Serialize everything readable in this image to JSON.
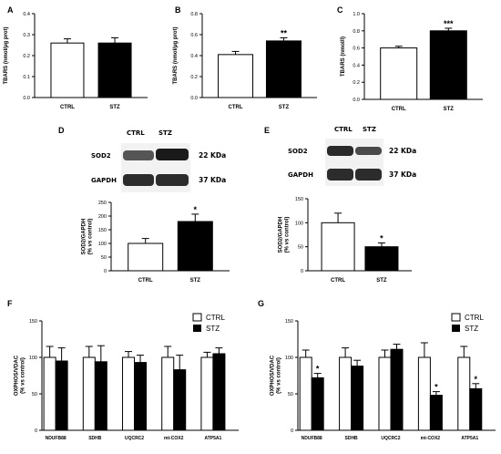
{
  "panels": {
    "A": "A",
    "B": "B",
    "C": "C",
    "D": "D",
    "E": "E",
    "F": "F",
    "G": "G"
  },
  "blots": {
    "D": {
      "header": [
        "CTRL",
        "STZ"
      ],
      "rows": [
        {
          "protein": "SOD2",
          "size": "22 KDa"
        },
        {
          "protein": "GAPDH",
          "size": "37 KDa"
        }
      ]
    },
    "E": {
      "header": [
        "CTRL",
        "STZ"
      ],
      "rows": [
        {
          "protein": "SOD2",
          "size": "22 KDa"
        },
        {
          "protein": "GAPDH",
          "size": "37 KDa"
        }
      ]
    }
  },
  "legend": {
    "ctrl": "CTRL",
    "stz": "STZ"
  },
  "colors": {
    "ctrl": "#ffffff",
    "stz": "#000000",
    "axis": "#000000"
  },
  "chart_data": [
    {
      "id": "A",
      "type": "bar",
      "categories": [
        "CTRL",
        "STZ"
      ],
      "values": [
        0.26,
        0.26
      ],
      "errors": [
        0.02,
        0.025
      ],
      "stars": [
        "",
        ""
      ],
      "ylabel": "TBARS (nmol/μg prot)",
      "ylim": [
        0,
        0.4
      ],
      "yticks": [
        "0.0",
        "0.1",
        "0.2",
        "0.3",
        "0.4"
      ]
    },
    {
      "id": "B",
      "type": "bar",
      "categories": [
        "CTRL",
        "STZ"
      ],
      "values": [
        0.41,
        0.54
      ],
      "errors": [
        0.03,
        0.03
      ],
      "stars": [
        "",
        "**"
      ],
      "ylabel": "TBARS (nmol/μg prot)",
      "ylim": [
        0,
        0.8
      ],
      "yticks": [
        "0.0",
        "0.2",
        "0.4",
        "0.6",
        "0.8"
      ]
    },
    {
      "id": "C",
      "type": "bar",
      "categories": [
        "CTRL",
        "STZ"
      ],
      "values": [
        0.6,
        0.8
      ],
      "errors": [
        0.02,
        0.03
      ],
      "stars": [
        "",
        "***"
      ],
      "ylabel": "TBARS (nmol/l)",
      "ylim": [
        0,
        1.0
      ],
      "yticks": [
        "0.0",
        "0.2",
        "0.4",
        "0.6",
        "0.8",
        "1.0"
      ]
    },
    {
      "id": "D",
      "type": "bar",
      "categories": [
        "CTRL",
        "STZ"
      ],
      "values": [
        100,
        180
      ],
      "errors": [
        18,
        27
      ],
      "stars": [
        "",
        "*"
      ],
      "ylabel": "SOD2/GAPDH (% vs control)",
      "ylim": [
        0,
        250
      ],
      "yticks": [
        "0",
        "50",
        "100",
        "150",
        "200",
        "250"
      ]
    },
    {
      "id": "E",
      "type": "bar",
      "categories": [
        "CTRL",
        "STZ"
      ],
      "values": [
        100,
        50
      ],
      "errors": [
        20,
        8
      ],
      "stars": [
        "",
        "*"
      ],
      "ylabel": "SOD2/GAPDH (% vs control)",
      "ylim": [
        0,
        150
      ],
      "yticks": [
        "0",
        "50",
        "100",
        "150"
      ]
    },
    {
      "id": "F",
      "type": "bar",
      "categories": [
        "NDUFB88",
        "SDHB",
        "UQCRC2",
        "mt-COX2",
        "ATP5A1"
      ],
      "series": [
        {
          "name": "CTRL",
          "values": [
            100,
            100,
            100,
            100,
            100
          ],
          "errors": [
            15,
            15,
            8,
            15,
            7
          ],
          "stars": [
            "",
            "",
            "",
            "",
            ""
          ]
        },
        {
          "name": "STZ",
          "values": [
            95,
            94,
            93,
            83,
            105
          ],
          "errors": [
            18,
            22,
            10,
            20,
            8
          ],
          "stars": [
            "",
            "",
            "",
            "",
            ""
          ]
        }
      ],
      "ylabel": "OXPHOS/VDAC (% vs control)",
      "ylim": [
        0,
        150
      ],
      "yticks": [
        "0",
        "50",
        "100",
        "150"
      ]
    },
    {
      "id": "G",
      "type": "bar",
      "categories": [
        "NDUFB88",
        "SDHB",
        "UQCRC2",
        "mt-COX2",
        "ATP5A1"
      ],
      "series": [
        {
          "name": "CTRL",
          "values": [
            100,
            100,
            100,
            100,
            100
          ],
          "errors": [
            10,
            13,
            10,
            20,
            15
          ],
          "stars": [
            "",
            "",
            "",
            "",
            ""
          ]
        },
        {
          "name": "STZ",
          "values": [
            72,
            88,
            111,
            48,
            57
          ],
          "errors": [
            6,
            8,
            7,
            5,
            7
          ],
          "stars": [
            "*",
            "",
            "",
            "*",
            "*"
          ]
        }
      ],
      "ylabel": "OXPHOS/VDAC (% vs control)",
      "ylim": [
        0,
        150
      ],
      "yticks": [
        "0",
        "50",
        "100",
        "150"
      ]
    }
  ]
}
